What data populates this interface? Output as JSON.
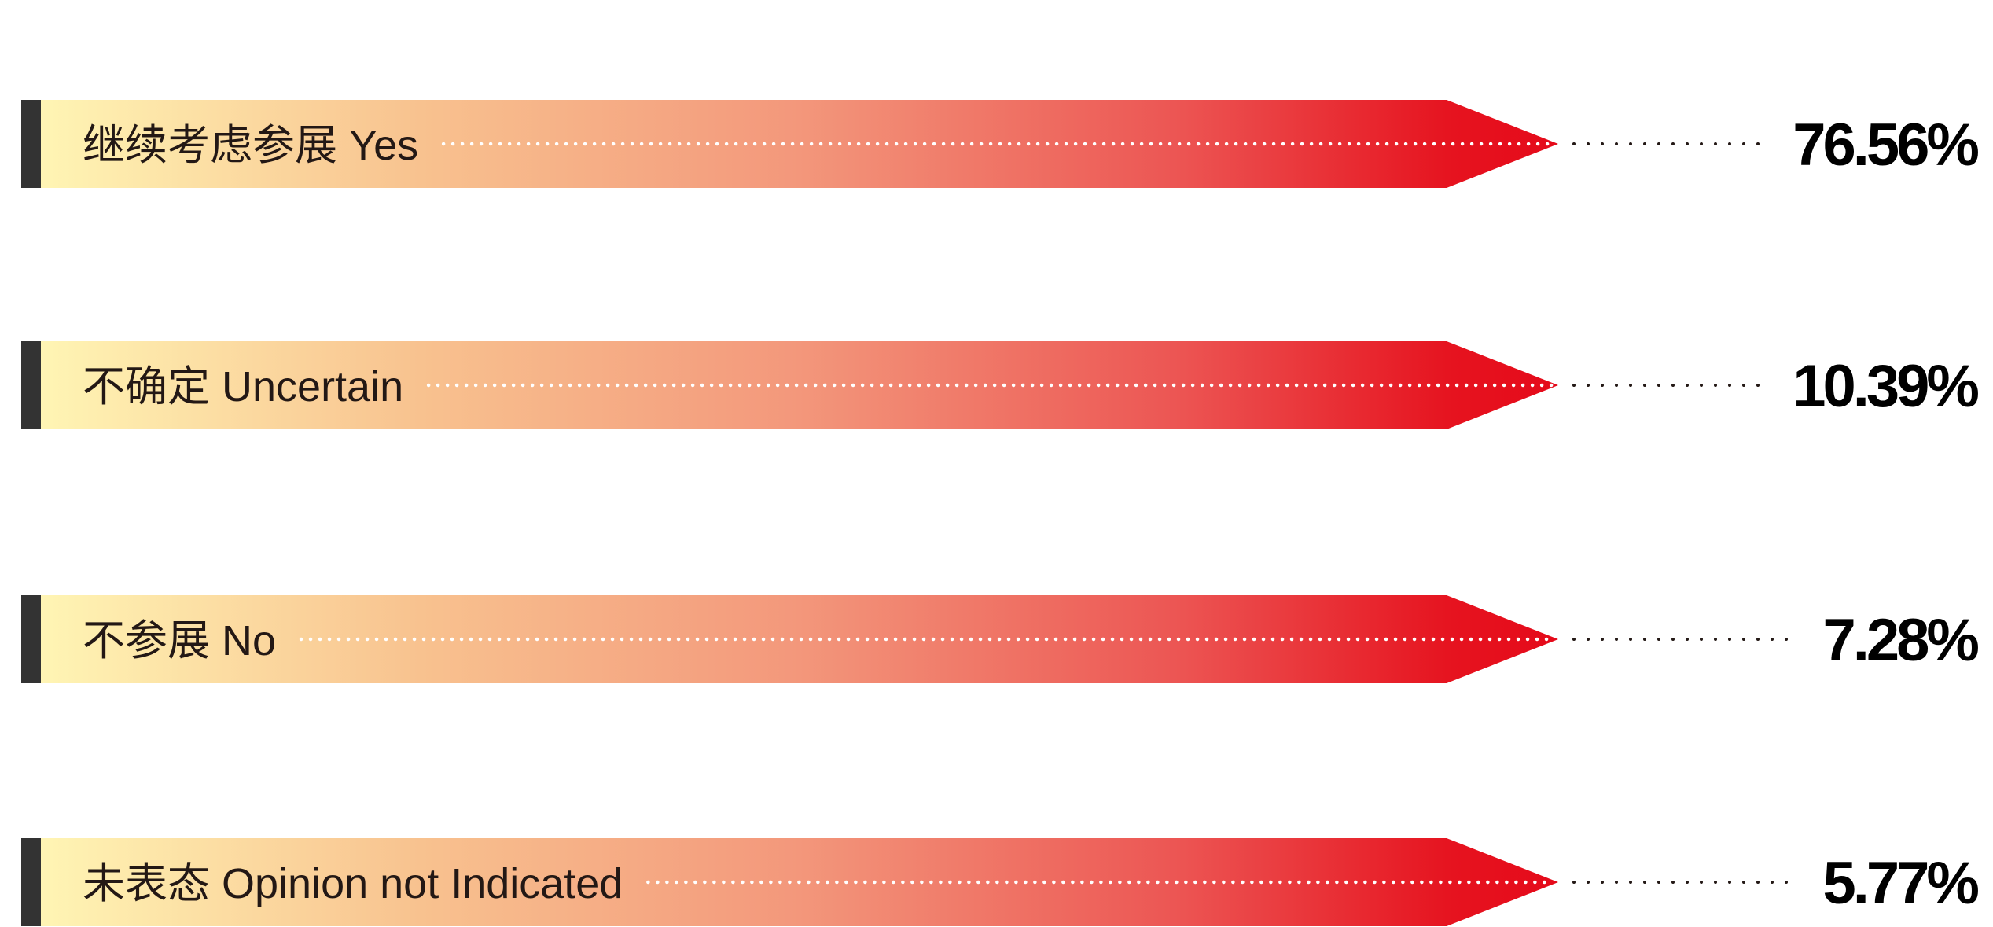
{
  "chart_data": {
    "type": "bar",
    "categories": [
      "继续考虑参展 Yes",
      "不确定 Uncertain",
      "不参展 No",
      "未表态 Opinion not Indicated"
    ],
    "values": [
      76.56,
      10.39,
      7.28,
      5.77
    ],
    "value_labels": [
      "76.56%",
      "10.39%",
      "7.28%",
      "5.77%"
    ],
    "colors": {
      "gradient": [
        "#FFF5B4",
        "#F8C28F",
        "#F3977B",
        "#EC5553",
        "#E6131F",
        "#E50A1A"
      ],
      "marker": "#333333",
      "label_text": "#231815",
      "value_text": "#000000",
      "inner_dots": "#FFFFFF",
      "outer_dots": "#231815"
    }
  }
}
